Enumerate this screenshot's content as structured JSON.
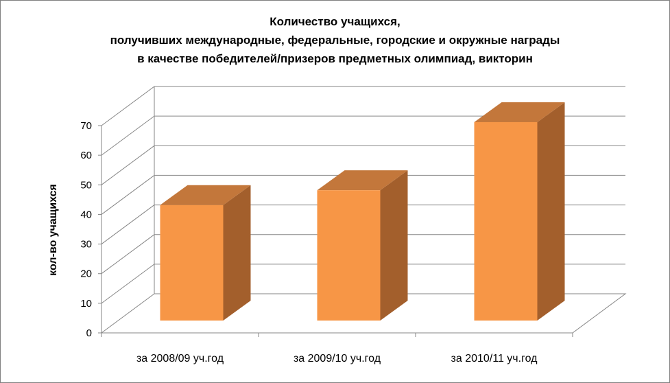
{
  "chart_data": {
    "type": "bar",
    "title_lines": [
      "Количество учащихся,",
      "получивших международные, федеральные, городские и окружные награды",
      "в качестве победителей/призеров предметных олимпиад, викторин"
    ],
    "ylabel": "кол-во учащихся",
    "xlabel": "",
    "categories": [
      "за 2008/09 уч.год",
      "за 2009/10 уч.год",
      "за 2010/11 уч.год"
    ],
    "values": [
      39,
      44,
      67
    ],
    "ylim": [
      0,
      70
    ],
    "yticks": [
      "0",
      "10",
      "20",
      "30",
      "40",
      "50",
      "60",
      "70"
    ],
    "grid": true,
    "legend": "none",
    "colors": {
      "front": "#f79646",
      "top": "#c3773b",
      "side": "#a35f2c"
    }
  }
}
